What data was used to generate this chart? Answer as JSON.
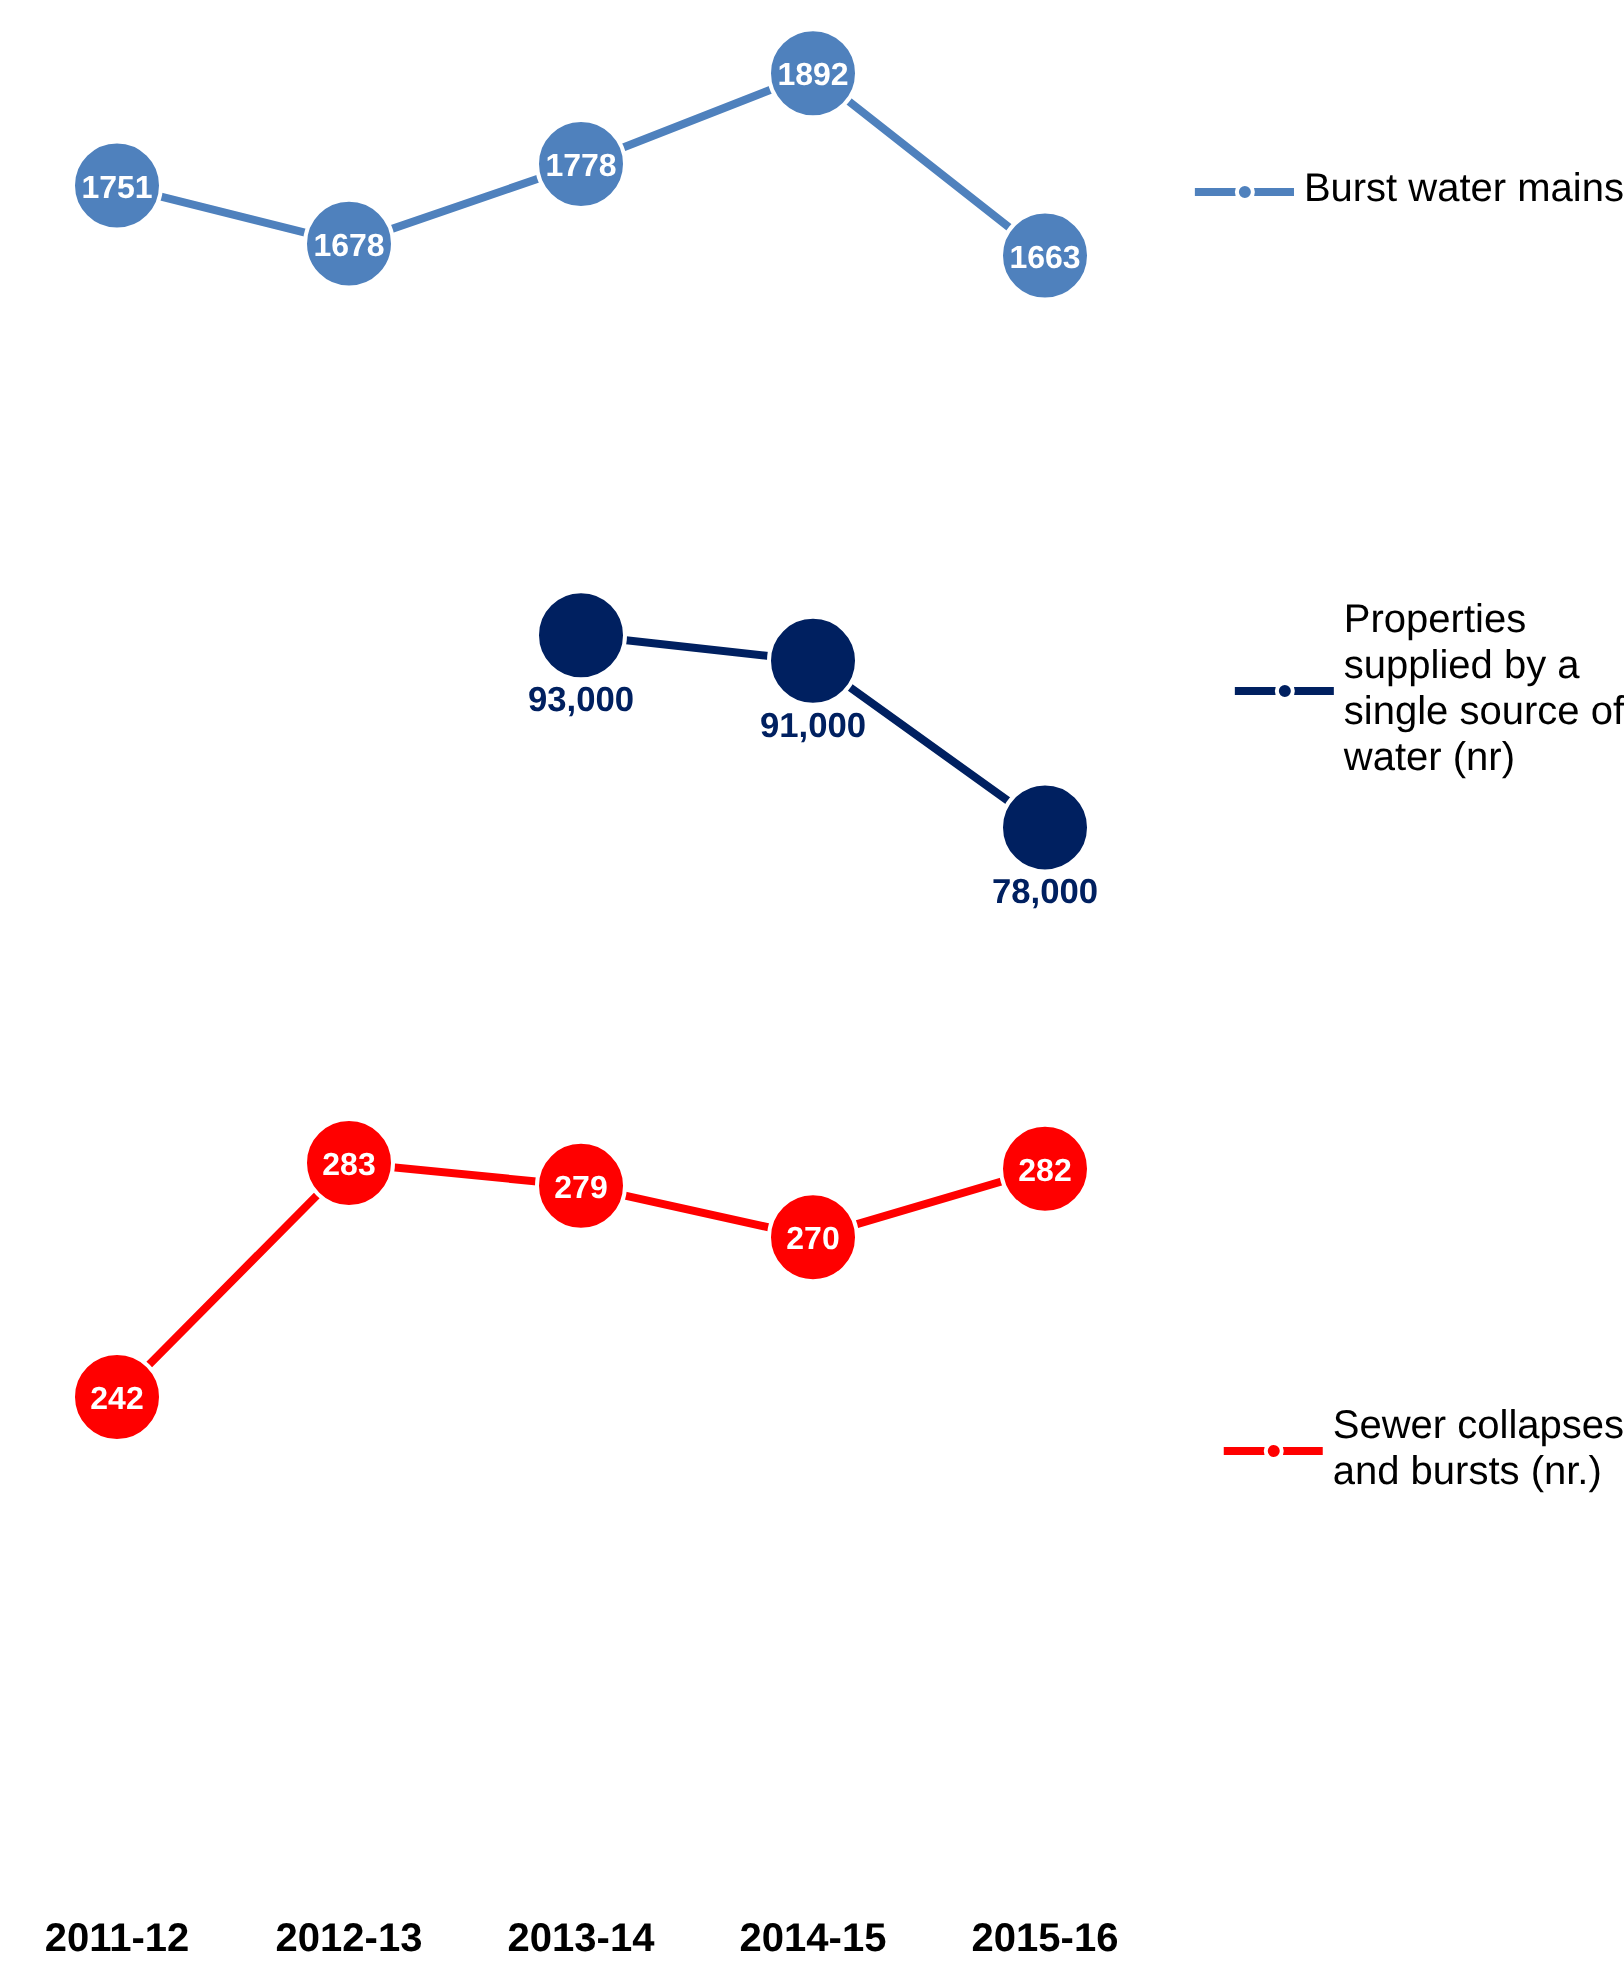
{
  "chart_data": [
    {
      "type": "line",
      "categories": [
        "2011-12",
        "2012-13",
        "2013-14",
        "2014-15",
        "2015-16"
      ],
      "tick_labels": false,
      "grid": false,
      "legend": "right",
      "marker": "circle",
      "data_labels": true,
      "series": [
        {
          "name": "Burst water mains",
          "color": "#4f81bd",
          "values": [
            1751,
            1678,
            1778,
            1892,
            1663
          ]
        }
      ]
    },
    {
      "type": "line",
      "categories": [
        "2011-12",
        "2012-13",
        "2013-14",
        "2014-15",
        "2015-16"
      ],
      "tick_labels": false,
      "grid": false,
      "legend": "right",
      "marker": "circle",
      "series": [
        {
          "name": "Properties supplied by a single source of water (nr)",
          "color": "#002060",
          "values": [
            null,
            null,
            93000,
            91000,
            78000
          ],
          "value_labels": [
            null,
            null,
            "93,000",
            "91,000",
            "78,000"
          ]
        }
      ]
    },
    {
      "type": "line",
      "categories": [
        "2011-12",
        "2012-13",
        "2013-14",
        "2014-15",
        "2015-16"
      ],
      "tick_labels": "x",
      "grid": false,
      "legend": "right",
      "marker": "circle",
      "data_labels": true,
      "series": [
        {
          "name": "Sewer collapses and bursts (nr.)",
          "color": "#ff0000",
          "values": [
            242,
            283,
            279,
            270,
            282
          ]
        }
      ]
    }
  ]
}
